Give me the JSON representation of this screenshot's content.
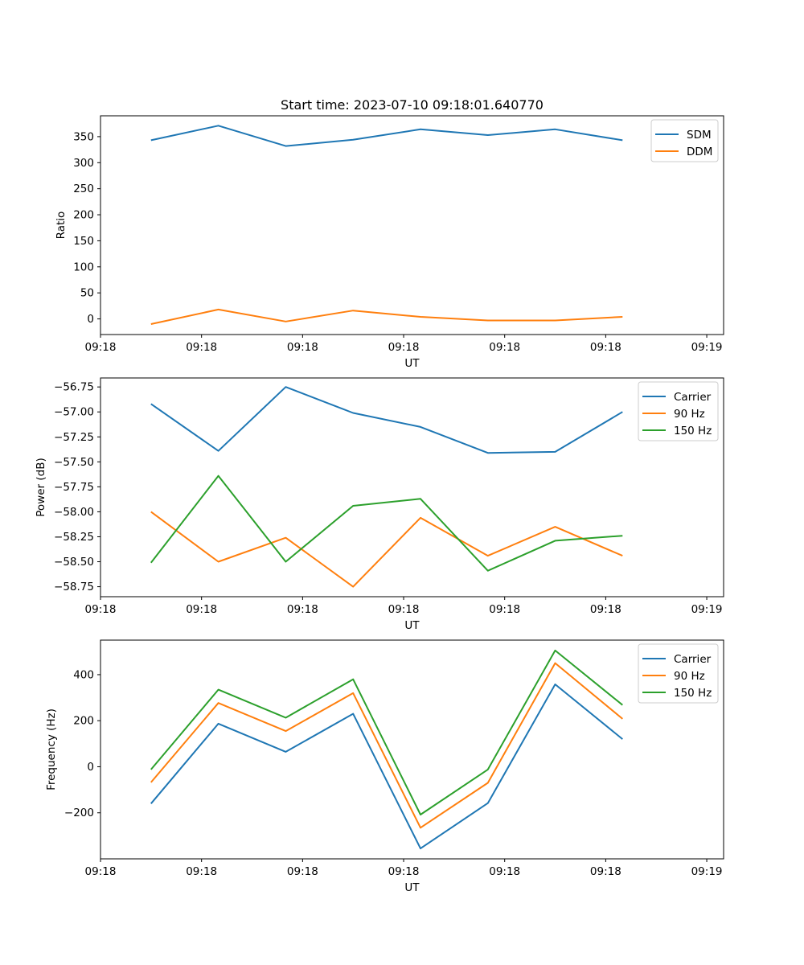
{
  "chart_data": [
    {
      "type": "line",
      "title": "Start time: 2023-07-10 09:18:01.640770",
      "xlabel": "UT",
      "ylabel": "Ratio",
      "ylim": [
        -30,
        390
      ],
      "yticks": [
        0,
        50,
        100,
        150,
        200,
        250,
        300,
        350
      ],
      "ytick_labels": [
        "0",
        "50",
        "100",
        "150",
        "200",
        "250",
        "300",
        "350"
      ],
      "xlim": [
        -0.75,
        8.5
      ],
      "xtick_positions": [
        -0.75,
        0.75,
        2.25,
        3.75,
        5.25,
        6.75,
        8.25
      ],
      "xtick_labels": [
        "09:18",
        "09:18",
        "09:18",
        "09:18",
        "09:18",
        "09:18",
        "09:19"
      ],
      "x": [
        0,
        1,
        2,
        3,
        4,
        5,
        6,
        7
      ],
      "legend_position": "top-right",
      "series": [
        {
          "name": "SDM",
          "color": "#1f77b4",
          "values": [
            343,
            371,
            332,
            344,
            364,
            353,
            364,
            343
          ]
        },
        {
          "name": "DDM",
          "color": "#ff7f0e",
          "values": [
            -10,
            18,
            -5,
            16,
            4,
            -3,
            -3,
            4
          ]
        }
      ]
    },
    {
      "type": "line",
      "title": "",
      "xlabel": "UT",
      "ylabel": "Power (dB)",
      "ylim": [
        -58.85,
        -56.66
      ],
      "yticks": [
        -58.75,
        -58.5,
        -58.25,
        -58.0,
        -57.75,
        -57.5,
        -57.25,
        -57.0,
        -56.75
      ],
      "ytick_labels": [
        "−58.75",
        "−58.50",
        "−58.25",
        "−58.00",
        "−57.75",
        "−57.50",
        "−57.25",
        "−57.00",
        "−56.75"
      ],
      "xlim": [
        -0.75,
        8.5
      ],
      "xtick_positions": [
        -0.75,
        0.75,
        2.25,
        3.75,
        5.25,
        6.75,
        8.25
      ],
      "xtick_labels": [
        "09:18",
        "09:18",
        "09:18",
        "09:18",
        "09:18",
        "09:18",
        "09:19"
      ],
      "x": [
        0,
        1,
        2,
        3,
        4,
        5,
        6,
        7
      ],
      "legend_position": "top-right",
      "series": [
        {
          "name": "Carrier",
          "color": "#1f77b4",
          "values": [
            -56.92,
            -57.39,
            -56.75,
            -57.01,
            -57.15,
            -57.41,
            -57.4,
            -57.0
          ]
        },
        {
          "name": "90 Hz",
          "color": "#ff7f0e",
          "values": [
            -58.0,
            -58.5,
            -58.26,
            -58.75,
            -58.06,
            -58.44,
            -58.15,
            -58.44
          ]
        },
        {
          "name": "150 Hz",
          "color": "#2ca02c",
          "values": [
            -58.51,
            -57.64,
            -58.5,
            -57.94,
            -57.87,
            -58.59,
            -58.29,
            -58.24
          ]
        }
      ]
    },
    {
      "type": "line",
      "title": "",
      "xlabel": "UT",
      "ylabel": "Frequency (Hz)",
      "ylim": [
        -400,
        550
      ],
      "yticks": [
        -200,
        0,
        200,
        400
      ],
      "ytick_labels": [
        "−200",
        "0",
        "200",
        "400"
      ],
      "xlim": [
        -0.75,
        8.5
      ],
      "xtick_positions": [
        -0.75,
        0.75,
        2.25,
        3.75,
        5.25,
        6.75,
        8.25
      ],
      "xtick_labels": [
        "09:18",
        "09:18",
        "09:18",
        "09:18",
        "09:18",
        "09:18",
        "09:19"
      ],
      "x": [
        0,
        1,
        2,
        3,
        4,
        5,
        6,
        7
      ],
      "legend_position": "top-right",
      "series": [
        {
          "name": "Carrier",
          "color": "#1f77b4",
          "values": [
            -160,
            187,
            65,
            230,
            -355,
            -158,
            358,
            120
          ]
        },
        {
          "name": "90 Hz",
          "color": "#ff7f0e",
          "values": [
            -68,
            277,
            155,
            320,
            -265,
            -70,
            450,
            208
          ]
        },
        {
          "name": "150 Hz",
          "color": "#2ca02c",
          "values": [
            -12,
            335,
            213,
            380,
            -208,
            -12,
            505,
            268
          ]
        }
      ]
    }
  ]
}
